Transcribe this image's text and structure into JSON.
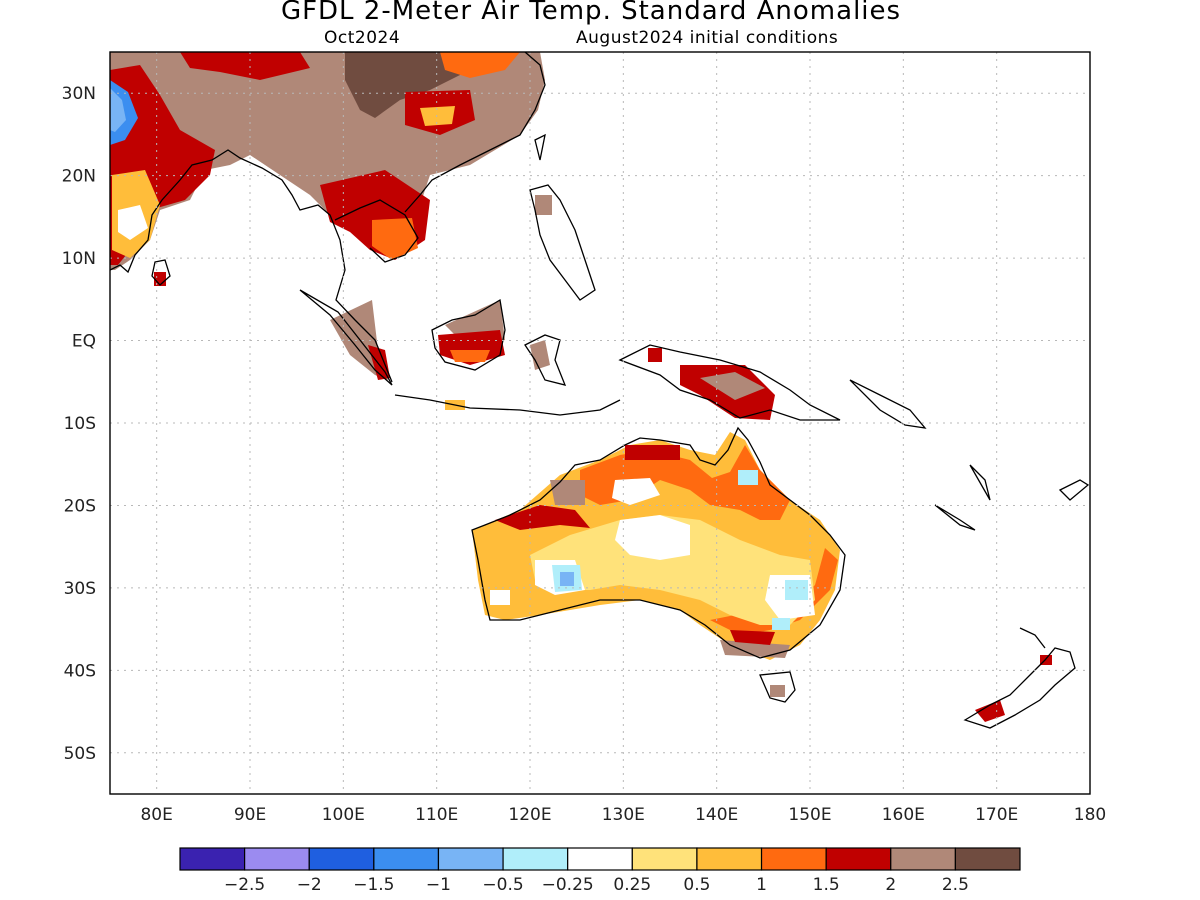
{
  "title": "GFDL 2-Meter Air Temp. Standard Anomalies",
  "subtitle_left": "Oct2024",
  "subtitle_right": "August2024 initial conditions",
  "map": {
    "lon_range": [
      75,
      180
    ],
    "lat_range": [
      -55,
      35
    ],
    "lon_labels": [
      "80E",
      "90E",
      "100E",
      "110E",
      "120E",
      "130E",
      "140E",
      "150E",
      "160E",
      "170E",
      "180"
    ],
    "lat_labels": [
      "30N",
      "20N",
      "10N",
      "EQ",
      "10S",
      "20S",
      "30S",
      "40S",
      "50S"
    ],
    "grid": true
  },
  "colorbar": {
    "colors": [
      "#3a22b0",
      "#9b8bf0",
      "#1f5fe0",
      "#3b8ef0",
      "#78b4f5",
      "#b0eefa",
      "#ffffff",
      "#ffe27a",
      "#ffbd3a",
      "#ff6a10",
      "#c00000",
      "#b08878",
      "#704c40"
    ],
    "labels": [
      "-2.5",
      "-2",
      "-1.5",
      "-1",
      "-0.5",
      "-0.25",
      "0.25",
      "0.5",
      "1",
      "1.5",
      "2",
      "2.5"
    ]
  },
  "colors": {
    "frame": "#000000",
    "grid": "#b8b8b8",
    "coast": "#000000"
  }
}
